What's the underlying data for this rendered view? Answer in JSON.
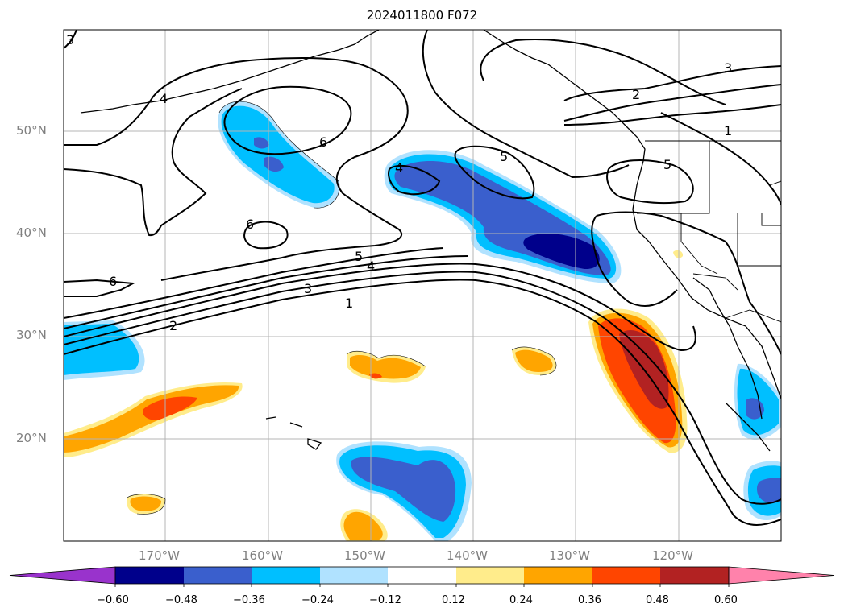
{
  "title": "2024011800 F072",
  "lat_labels": [
    "50°N",
    "40°N",
    "30°N",
    "20°N"
  ],
  "lon_labels": [
    "170°W",
    "160°W",
    "150°W",
    "140°W",
    "130°W",
    "120°W"
  ],
  "contour_labels": [
    "3",
    "4",
    "6",
    "6",
    "5",
    "4",
    "3",
    "2",
    "1",
    "4",
    "5",
    "3",
    "2",
    "1",
    "5",
    "6"
  ],
  "colorbar": {
    "ticks": [
      "−0.60",
      "−0.48",
      "−0.36",
      "−0.24",
      "−0.12",
      "0.12",
      "0.24",
      "0.36",
      "0.48",
      "0.60"
    ],
    "colors": [
      "#9933cc",
      "#00008b",
      "#3a5fcd",
      "#00bfff",
      "#b0e2ff",
      "#ffffff",
      "#ffec8b",
      "#ffa500",
      "#ff4500",
      "#b22222",
      "#ff82ab"
    ]
  },
  "fill_colors": {
    "light_blue": "#b0e2ff",
    "blue": "#00bfff",
    "royal": "#3a5fcd",
    "navy": "#00008b",
    "yellow": "#ffec8b",
    "orange": "#ffa500",
    "redorange": "#ff4500",
    "firebrick": "#b22222"
  }
}
